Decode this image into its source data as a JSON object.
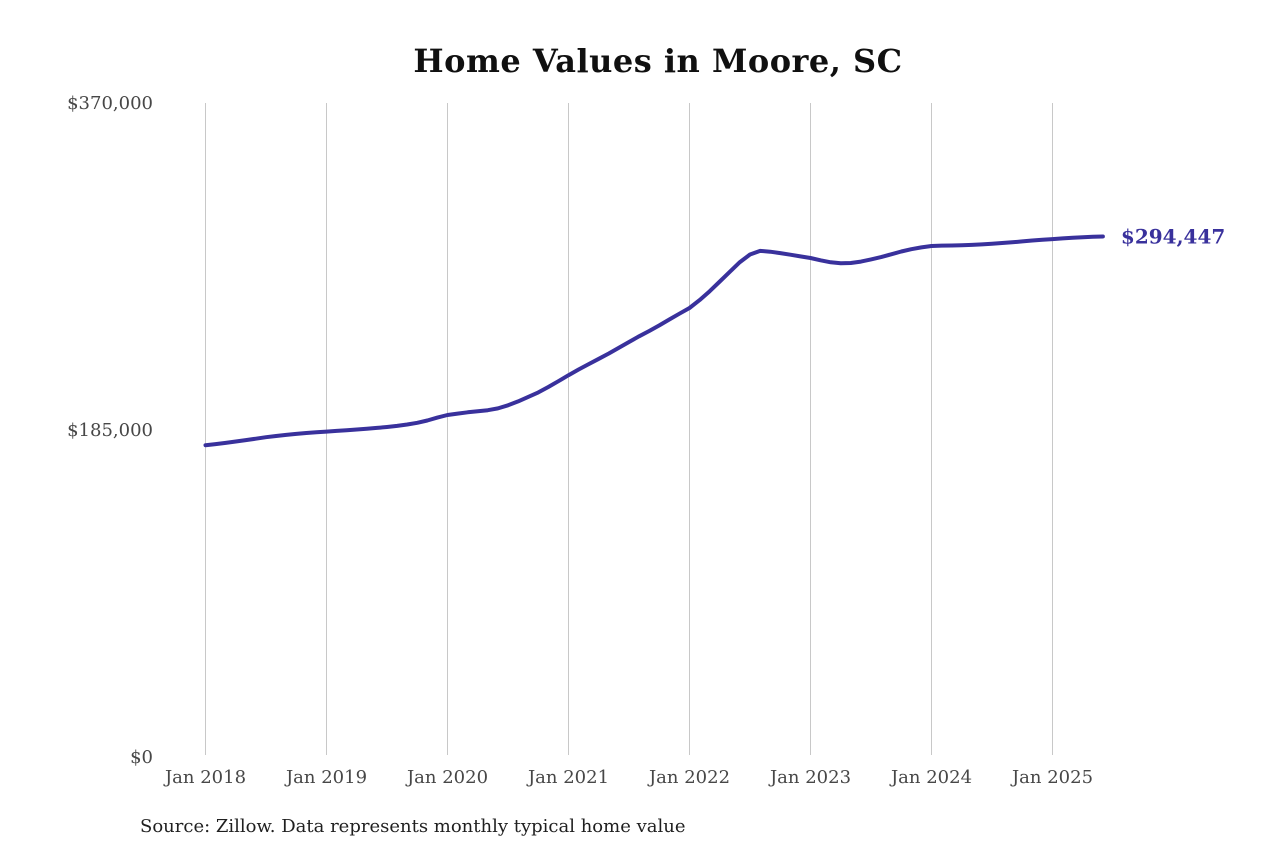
{
  "source_note": "Source: Zillow. Data represents monthly typical home value",
  "colors": {
    "line": "#39319c",
    "grid": "#c8c8c8",
    "axis_text": "#474747",
    "title_text": "#101010",
    "end_label": "#39319c",
    "background": "#ffffff"
  },
  "chart_data": {
    "type": "line",
    "title": "Home Values in Moore, SC",
    "xlabel": "",
    "ylabel": "",
    "grid": "vertical-only",
    "legend": "none",
    "ylim": [
      0,
      370000
    ],
    "x_tick_labels": [
      "Jan 2018",
      "Jan 2019",
      "Jan 2020",
      "Jan 2021",
      "Jan 2022",
      "Jan 2023",
      "Jan 2024",
      "Jan 2025"
    ],
    "y_ticks": [
      {
        "label": "$0",
        "value": 0
      },
      {
        "label": "$185,000",
        "value": 185000
      },
      {
        "label": "$370,000",
        "value": 370000
      }
    ],
    "series": [
      {
        "name": "Monthly typical home value",
        "start": "Jan 2018",
        "end": "Jun 2025",
        "frequency": "monthly",
        "final_value": 294447,
        "final_label": "$294,447",
        "values": [
          176400,
          177000,
          177700,
          178500,
          179300,
          180100,
          180900,
          181600,
          182200,
          182800,
          183300,
          183700,
          184100,
          184500,
          184900,
          185300,
          185700,
          186200,
          186700,
          187300,
          188100,
          189100,
          190400,
          192000,
          193500,
          194300,
          195000,
          195600,
          196200,
          197200,
          199000,
          201200,
          203700,
          206300,
          209300,
          212600,
          216000,
          219200,
          222300,
          225300,
          228300,
          231500,
          234800,
          238000,
          241000,
          244200,
          247500,
          250800,
          254000,
          258500,
          263500,
          269000,
          274500,
          280000,
          284300,
          286300,
          285900,
          285100,
          284200,
          283200,
          282300,
          281000,
          279900,
          279300,
          279500,
          280300,
          281500,
          282800,
          284400,
          286000,
          287300,
          288300,
          289100,
          289300,
          289400,
          289500,
          289700,
          290000,
          290400,
          290800,
          291200,
          291700,
          292200,
          292600,
          293000,
          293400,
          293800,
          294100,
          294300,
          294447
        ]
      }
    ]
  }
}
